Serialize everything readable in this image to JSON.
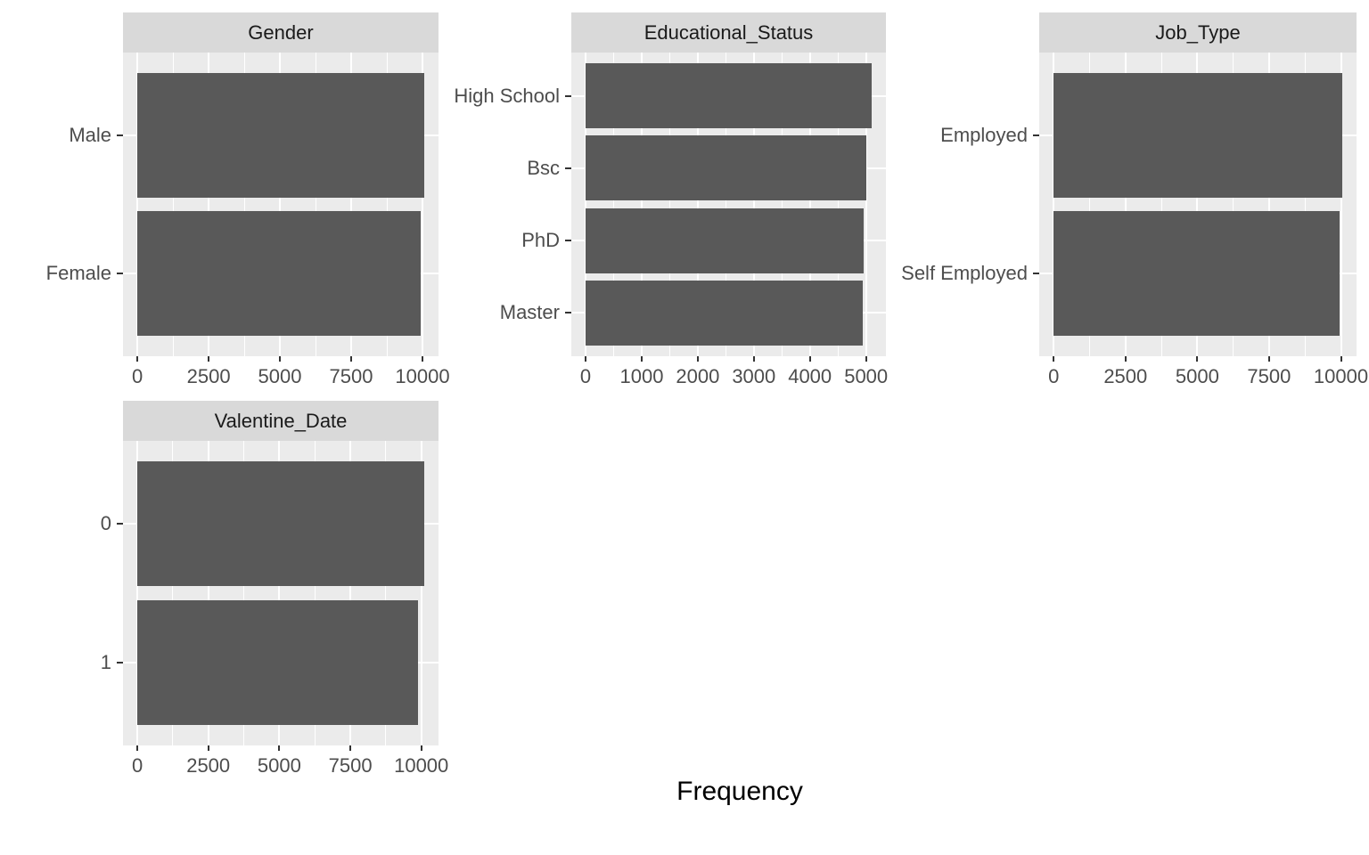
{
  "chart_data": {
    "type": "bar",
    "orientation": "horizontal",
    "title": "",
    "xlabel": "Frequency",
    "ylabel": "",
    "grid": true,
    "legend": false,
    "facets": [
      {
        "title": "Gender",
        "categories": [
          "Male",
          "Female"
        ],
        "values": [
          10060,
          9940
        ],
        "x_ticks": [
          0,
          2500,
          5000,
          7500,
          10000
        ]
      },
      {
        "title": "Educational_Status",
        "categories": [
          "High School",
          "Bsc",
          "PhD",
          "Master"
        ],
        "values": [
          5100,
          5000,
          4960,
          4940
        ],
        "x_ticks": [
          0,
          1000,
          2000,
          3000,
          4000,
          5000
        ]
      },
      {
        "title": "Job_Type",
        "categories": [
          "Employed",
          "Self Employed"
        ],
        "values": [
          10040,
          9960
        ],
        "x_ticks": [
          0,
          2500,
          5000,
          7500,
          10000
        ]
      },
      {
        "title": "Valentine_Date",
        "categories": [
          "0",
          "1"
        ],
        "values": [
          10100,
          9900
        ],
        "x_ticks": [
          0,
          2500,
          5000,
          7500,
          10000
        ]
      }
    ],
    "colors": {
      "bar": "#595959",
      "panel_bg": "#EBEBEB",
      "strip_bg": "#D9D9D9",
      "grid": "#FFFFFF",
      "axis_text": "#4D4D4D",
      "tick_mark": "#333333",
      "strip_text": "#1A1A1A",
      "axis_title_text": "#000000"
    }
  }
}
